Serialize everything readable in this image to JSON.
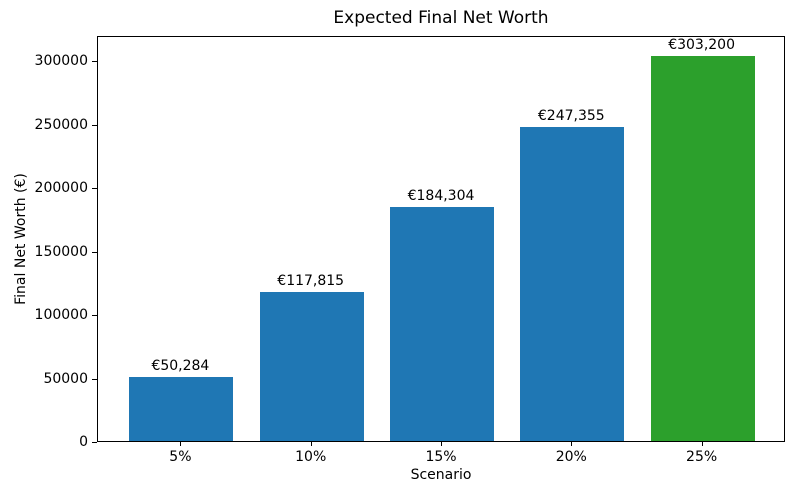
{
  "chart_data": {
    "type": "bar",
    "title": "Expected Final Net Worth",
    "xlabel": "Scenario",
    "ylabel": "Final Net Worth (€)",
    "categories": [
      "5%",
      "10%",
      "15%",
      "20%",
      "25%"
    ],
    "values": [
      50284,
      117815,
      184304,
      247355,
      303200
    ],
    "bar_labels": [
      "€50,284",
      "€117,815",
      "€184,304",
      "€247,355",
      "€303,200"
    ],
    "bar_colors": [
      "#1f77b4",
      "#1f77b4",
      "#1f77b4",
      "#1f77b4",
      "#2ca02c"
    ],
    "default_color": "#1f77b4",
    "highlight_color": "#2ca02c",
    "yticks": [
      0,
      50000,
      100000,
      150000,
      200000,
      250000,
      300000
    ],
    "ylim": [
      0,
      320000
    ],
    "xlim": [
      -0.64,
      4.64
    ],
    "bar_width": 0.8,
    "grid": false,
    "legend": "none",
    "text_color": "#000000",
    "spine_color": "#000000"
  }
}
